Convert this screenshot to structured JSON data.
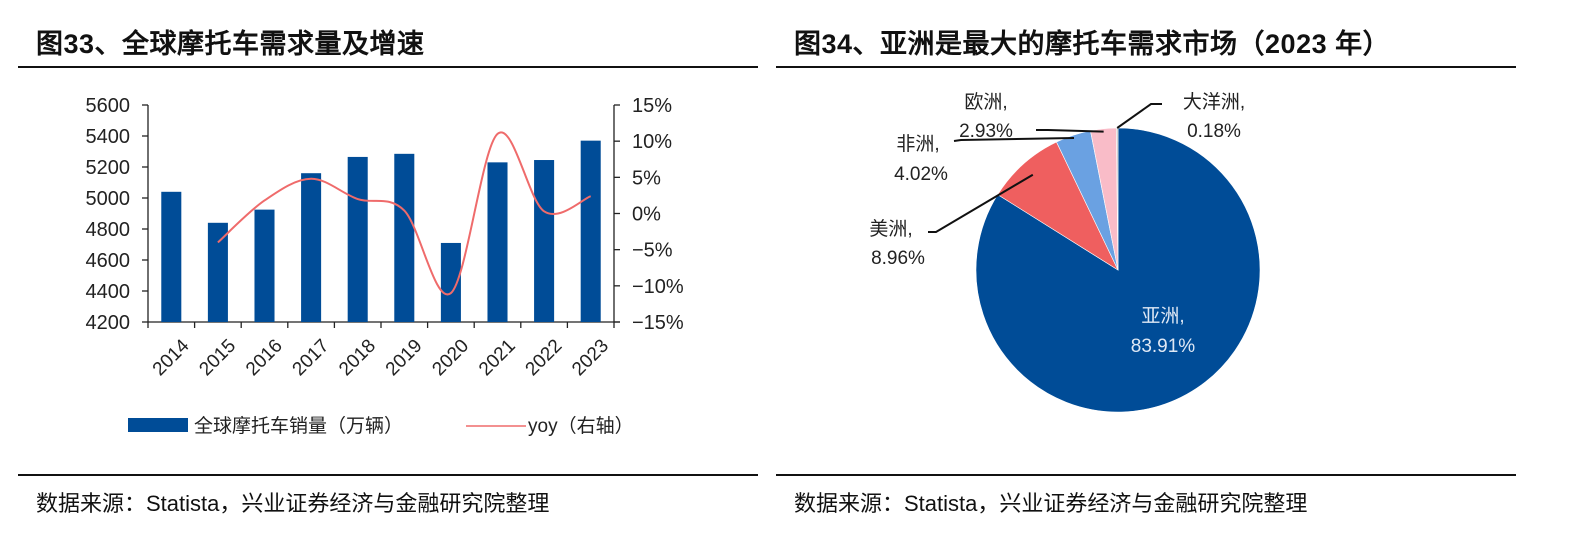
{
  "left_panel": {
    "title": "图33、全球摩托车需求量及增速",
    "source": "数据来源：Statista，兴业证券经济与金融研究院整理"
  },
  "right_panel": {
    "title": "图34、亚洲是最大的摩托车需求市场（2023 年）",
    "source": "数据来源：Statista，兴业证券经济与金融研究院整理"
  },
  "colors": {
    "bar": "#004C97",
    "line": "#EF6B6B",
    "asia": "#004C97",
    "americas": "#EF5F5F",
    "africa": "#6AA1E2",
    "europe": "#F9BCC8",
    "oceania": "#BEBEBE"
  },
  "chart_data": [
    {
      "type": "bar",
      "title": "图33、全球摩托车需求量及增速",
      "categories": [
        "2014",
        "2015",
        "2016",
        "2017",
        "2018",
        "2019",
        "2020",
        "2021",
        "2022",
        "2023"
      ],
      "series": [
        {
          "name": "全球摩托车销量（万辆）",
          "type": "bar",
          "axis": "left",
          "values": [
            5040,
            4840,
            4925,
            5160,
            5265,
            5285,
            4710,
            5230,
            5245,
            5370
          ]
        },
        {
          "name": "yoy（右轴）",
          "type": "line",
          "axis": "right",
          "values": [
            null,
            -4.0,
            1.8,
            4.8,
            2.0,
            0.4,
            -11.0,
            11.0,
            0.3,
            2.4
          ]
        }
      ],
      "ylim": [
        4200,
        5600
      ],
      "yticks": [
        "4200",
        "4400",
        "4600",
        "4800",
        "5000",
        "5200",
        "5400",
        "5600"
      ],
      "y2lim": [
        -15,
        15
      ],
      "y2ticks": [
        "−15%",
        "−10%",
        "−5%",
        "0%",
        "5%",
        "10%",
        "15%"
      ],
      "legend": "bottom",
      "grid": false,
      "xlabel": "",
      "ylabel": ""
    },
    {
      "type": "pie",
      "title": "图34、亚洲是最大的摩托车需求市场（2023 年）",
      "slices": [
        {
          "name": "亚洲",
          "value": 83.91,
          "label": "83.91%"
        },
        {
          "name": "美洲",
          "value": 8.96,
          "label": "8.96%"
        },
        {
          "name": "非洲",
          "value": 4.02,
          "label": "4.02%"
        },
        {
          "name": "欧洲",
          "value": 2.93,
          "label": "2.93%"
        },
        {
          "name": "大洋洲",
          "value": 0.18,
          "label": "0.18%"
        }
      ]
    }
  ]
}
